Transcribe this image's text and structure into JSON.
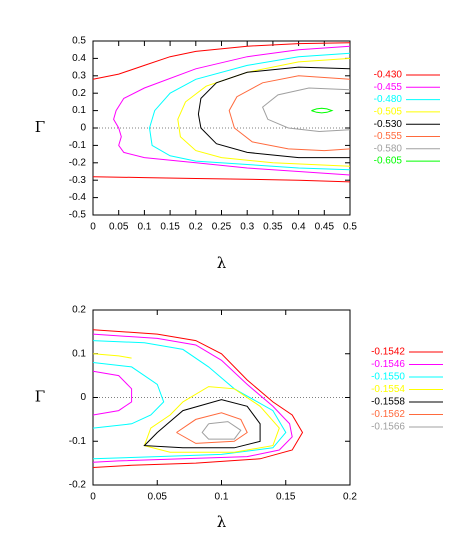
{
  "chart_data": [
    {
      "type": "contour",
      "x_label": "λ",
      "y_label": "Γ",
      "xlim": [
        0,
        0.5
      ],
      "ylim": [
        -0.5,
        0.5
      ],
      "xticks": [
        0,
        0.05,
        0.1,
        0.15,
        0.2,
        0.25,
        0.3,
        0.35,
        0.4,
        0.45,
        0.5
      ],
      "yticks": [
        -0.5,
        -0.4,
        -0.3,
        -0.2,
        -0.1,
        0,
        0.1,
        0.2,
        0.3,
        0.4,
        0.5
      ],
      "zero_line": true,
      "series": [
        {
          "name": "-0.430",
          "color": "#ff0000",
          "x": [
            0,
            0.05,
            0.1,
            0.15,
            0.2,
            0.3,
            0.4,
            0.5,
            null,
            0,
            0.1,
            0.2,
            0.3,
            0.4,
            0.5
          ],
          "y": [
            0.28,
            0.31,
            0.36,
            0.41,
            0.44,
            0.47,
            0.485,
            0.49,
            null,
            -0.28,
            -0.285,
            -0.29,
            -0.295,
            -0.3,
            -0.31
          ]
        },
        {
          "name": "-0.455",
          "color": "#ff00ff",
          "x": [
            0.5,
            0.4,
            0.3,
            0.2,
            0.1,
            0.06,
            0.045,
            0.04,
            0.05,
            0.055,
            0.05,
            0.06,
            0.1,
            0.2,
            0.3,
            0.4,
            0.5
          ],
          "y": [
            0.47,
            0.45,
            0.41,
            0.34,
            0.23,
            0.17,
            0.1,
            0.05,
            0,
            -0.05,
            -0.1,
            -0.14,
            -0.17,
            -0.2,
            -0.23,
            -0.25,
            -0.27
          ]
        },
        {
          "name": "-0.480",
          "color": "#00ffff",
          "x": [
            0.5,
            0.4,
            0.3,
            0.2,
            0.15,
            0.12,
            0.11,
            0.115,
            0.15,
            0.2,
            0.3,
            0.4,
            0.5
          ],
          "y": [
            0.43,
            0.41,
            0.36,
            0.28,
            0.2,
            0.1,
            0,
            -0.1,
            -0.16,
            -0.19,
            -0.21,
            -0.23,
            -0.24
          ]
        },
        {
          "name": "-0.505",
          "color": "#ffff00",
          "x": [
            0.5,
            0.4,
            0.3,
            0.22,
            0.18,
            0.165,
            0.17,
            0.2,
            0.25,
            0.35,
            0.5
          ],
          "y": [
            0.4,
            0.38,
            0.32,
            0.24,
            0.15,
            0.05,
            -0.05,
            -0.13,
            -0.17,
            -0.2,
            -0.22
          ]
        },
        {
          "name": "-0.530",
          "color": "#000000",
          "x": [
            0.5,
            0.4,
            0.3,
            0.24,
            0.21,
            0.205,
            0.21,
            0.24,
            0.3,
            0.4,
            0.5
          ],
          "y": [
            0.34,
            0.35,
            0.32,
            0.26,
            0.17,
            0.08,
            0,
            -0.09,
            -0.14,
            -0.17,
            -0.17
          ]
        },
        {
          "name": "-0.555",
          "color": "#ff6a3d",
          "x": [
            0.5,
            0.4,
            0.33,
            0.28,
            0.265,
            0.275,
            0.31,
            0.38,
            0.45,
            0.5
          ],
          "y": [
            0.28,
            0.3,
            0.26,
            0.18,
            0.1,
            0,
            -0.08,
            -0.12,
            -0.13,
            -0.12
          ]
        },
        {
          "name": "-0.580",
          "color": "#a0a0a0",
          "x": [
            0.5,
            0.42,
            0.36,
            0.33,
            0.34,
            0.38,
            0.44,
            0.5
          ],
          "y": [
            0.22,
            0.23,
            0.19,
            0.12,
            0.05,
            0,
            -0.02,
            -0.01
          ]
        },
        {
          "name": "-0.605",
          "color": "#00ff00",
          "x": [
            0.425,
            0.435,
            0.445,
            0.455,
            0.465,
            0.455,
            0.445,
            0.435,
            0.425
          ],
          "y": [
            0.1,
            0.11,
            0.113,
            0.11,
            0.1,
            0.09,
            0.087,
            0.09,
            0.1
          ]
        }
      ]
    },
    {
      "type": "contour",
      "x_label": "λ",
      "y_label": "Γ",
      "xlim": [
        0,
        0.2
      ],
      "ylim": [
        -0.2,
        0.2
      ],
      "xticks": [
        0,
        0.05,
        0.1,
        0.15,
        0.2
      ],
      "yticks": [
        -0.2,
        -0.1,
        0,
        0.1,
        0.2
      ],
      "zero_line": true,
      "series": [
        {
          "name": "-0.1542",
          "color": "#ff0000",
          "x": [
            0,
            0.05,
            0.08,
            0.1,
            0.12,
            0.14,
            0.155,
            0.163,
            0.155,
            0.13,
            0.08,
            0.03,
            0
          ],
          "y": [
            0.155,
            0.145,
            0.13,
            0.1,
            0.04,
            -0.01,
            -0.04,
            -0.08,
            -0.12,
            -0.14,
            -0.15,
            -0.155,
            -0.16
          ]
        },
        {
          "name": "-0.1546",
          "color": "#ff00ff",
          "x": [
            0,
            0.05,
            0.08,
            0.1,
            0.12,
            0.14,
            0.153,
            0.155,
            0.145,
            0.12,
            0.07,
            0.02,
            0,
            null,
            0,
            0.02,
            0.03,
            0.03,
            0.02,
            0
          ],
          "y": [
            0.145,
            0.135,
            0.12,
            0.085,
            0.03,
            -0.02,
            -0.06,
            -0.09,
            -0.12,
            -0.135,
            -0.14,
            -0.145,
            -0.148,
            null,
            0.06,
            0.05,
            0.02,
            -0.01,
            -0.03,
            -0.04
          ]
        },
        {
          "name": "-0.1550",
          "color": "#00ffff",
          "x": [
            0,
            0.04,
            0.07,
            0.09,
            0.11,
            0.14,
            0.15,
            0.14,
            0.1,
            0.05,
            0,
            null,
            0,
            0.03,
            0.05,
            0.055,
            0.045,
            0.03,
            0
          ],
          "y": [
            0.13,
            0.125,
            0.11,
            0.07,
            0.02,
            -0.03,
            -0.08,
            -0.115,
            -0.13,
            -0.135,
            -0.14,
            null,
            0.08,
            0.07,
            0.03,
            -0.01,
            -0.04,
            -0.06,
            -0.07
          ]
        },
        {
          "name": "-0.1554",
          "color": "#ffff00",
          "x": [
            0,
            0.02,
            0.03,
            null,
            0.06,
            0.07,
            0.09,
            0.11,
            0.13,
            0.145,
            0.14,
            0.11,
            0.06,
            0.04,
            0.045,
            0.06
          ],
          "y": [
            0.1,
            0.095,
            0.09,
            null,
            -0.04,
            -0.01,
            0.025,
            0.02,
            -0.02,
            -0.07,
            -0.11,
            -0.125,
            -0.125,
            -0.11,
            -0.07,
            -0.04
          ]
        },
        {
          "name": "-0.1558",
          "color": "#000000",
          "x": [
            0.05,
            0.07,
            0.1,
            0.12,
            0.13,
            0.13,
            0.11,
            0.07,
            0.04,
            0.05
          ],
          "y": [
            -0.08,
            -0.03,
            -0.005,
            -0.02,
            -0.06,
            -0.1,
            -0.115,
            -0.115,
            -0.11,
            -0.08
          ]
        },
        {
          "name": "-0.1562",
          "color": "#ff6a3d",
          "x": [
            0.065,
            0.08,
            0.1,
            0.115,
            0.12,
            0.11,
            0.08,
            0.065
          ],
          "y": [
            -0.08,
            -0.05,
            -0.035,
            -0.05,
            -0.08,
            -0.1,
            -0.105,
            -0.08
          ]
        },
        {
          "name": "-0.1566",
          "color": "#a0a0a0",
          "x": [
            0.09,
            0.105,
            0.115,
            0.11,
            0.09,
            0.085,
            0.09
          ],
          "y": [
            -0.06,
            -0.055,
            -0.075,
            -0.095,
            -0.095,
            -0.08,
            -0.06
          ]
        }
      ]
    }
  ]
}
